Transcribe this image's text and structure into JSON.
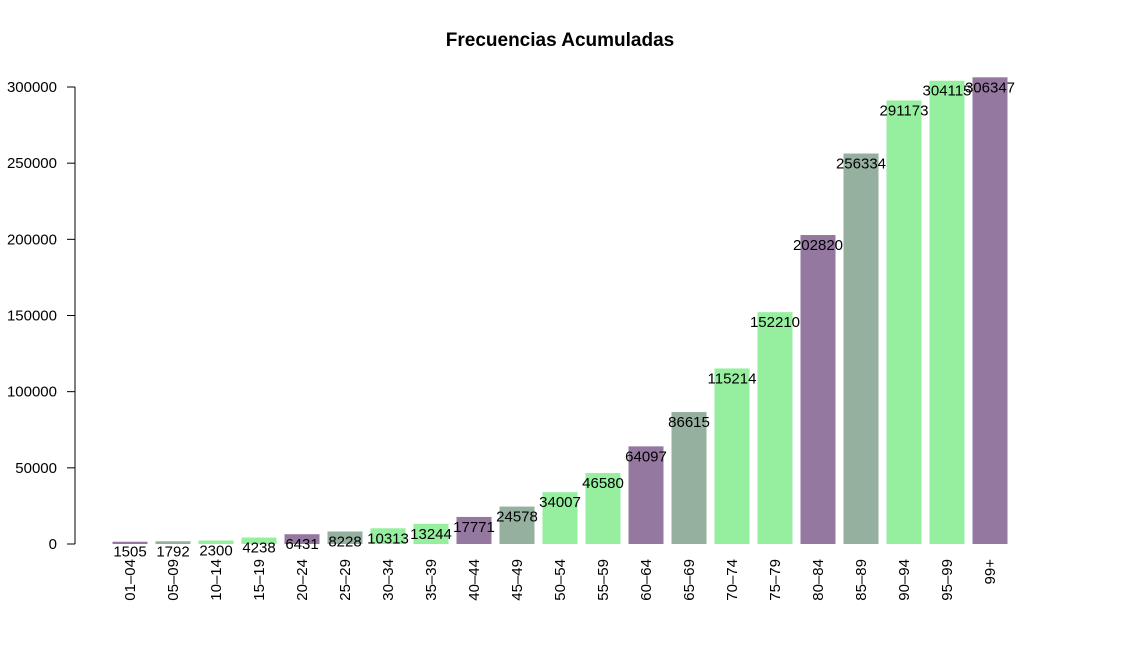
{
  "chart_data": {
    "type": "bar",
    "title": "Frecuencias Acumuladas",
    "xlabel": "",
    "ylabel": "",
    "ylim": [
      0,
      300000
    ],
    "yticks": [
      0,
      50000,
      100000,
      150000,
      200000,
      250000,
      300000
    ],
    "ytick_labels": [
      "0",
      "50000",
      "100000",
      "150000",
      "200000",
      "250000",
      "300000"
    ],
    "grid": false,
    "categories": [
      "01–04",
      "05–09",
      "10–14",
      "15–19",
      "20–24",
      "25–29",
      "30–34",
      "35–39",
      "40–44",
      "45–49",
      "50–54",
      "55–59",
      "60–64",
      "65–69",
      "70–74",
      "75–79",
      "80–84",
      "85–89",
      "90–94",
      "95–99",
      "99+"
    ],
    "values": [
      1505,
      1792,
      2300,
      4238,
      6431,
      8228,
      10313,
      13244,
      17771,
      24578,
      34007,
      46580,
      64097,
      86615,
      115214,
      152210,
      202820,
      256334,
      291173,
      304115,
      306347
    ],
    "data_labels": [
      "1505",
      "1792",
      "2300",
      "4238",
      "6431",
      "8228",
      "10313",
      "13244",
      "17771",
      "24578",
      "34007",
      "46580",
      "64097",
      "86615",
      "115214",
      "152210",
      "202820",
      "256334",
      "291173",
      "304115",
      "306347"
    ],
    "bar_colors": [
      "#9478a0",
      "#96b0a0",
      "#96ee9f",
      "#96ee9f",
      "#9478a0",
      "#96b0a0",
      "#96ee9f",
      "#96ee9f",
      "#9478a0",
      "#96b0a0",
      "#96ee9f",
      "#96ee9f",
      "#9478a0",
      "#96b0a0",
      "#96ee9f",
      "#96ee9f",
      "#9478a0",
      "#96b0a0",
      "#96ee9f",
      "#96ee9f",
      "#9478a0"
    ],
    "colors": {
      "purple": "#9478a0",
      "grey_green": "#96b0a0",
      "light_green": "#96ee9f"
    },
    "legend": "none"
  }
}
